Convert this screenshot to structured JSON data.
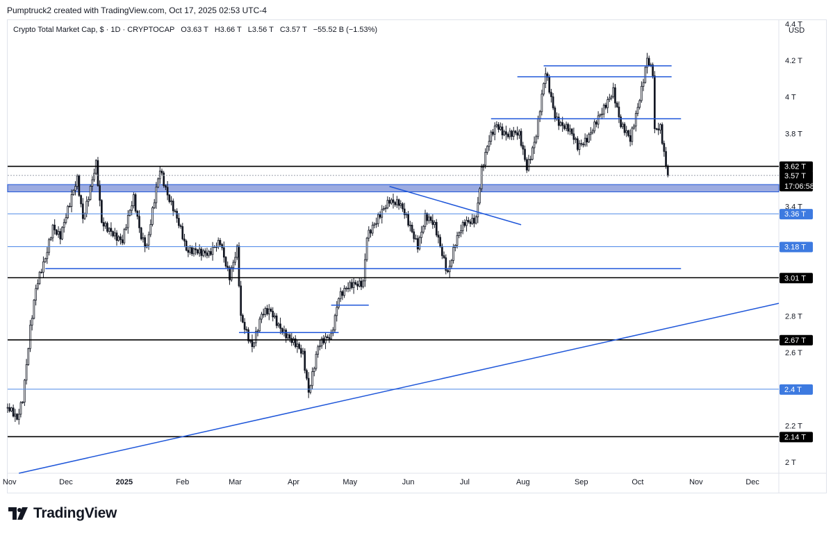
{
  "header": {
    "text": "Pumptruck2 created with TradingView.com, Oct 17, 2025 02:53 UTC-4"
  },
  "legend": {
    "symbol": "Crypto Total Market Cap, $ · 1D · CRYPTOCAP",
    "o_label": "O",
    "o_value": "3.63 T",
    "h_label": "H",
    "h_value": "3.66 T",
    "l_label": "L",
    "l_value": "3.56 T",
    "c_label": "C",
    "c_value": "3.57 T",
    "change": "−55.52 B (−1.53%)"
  },
  "currency": "USD",
  "countdown": "17:06:58",
  "brand": "TradingView",
  "colors": {
    "candle_up": "#ffffff",
    "candle_down": "#131722",
    "support_black": "#000000",
    "line_blue": "#1e56d9",
    "zone_fill": "#7b8fd6",
    "tag_blue": "#3d7ae0"
  },
  "chart_data": {
    "type": "candlestick",
    "title": "",
    "xlabel": "",
    "ylabel": "",
    "y_unit": "T USD",
    "ylim": [
      1.94,
      4.42
    ],
    "xlim": [
      "2024-10-31",
      "2025-12-15"
    ],
    "x_ticks": [
      {
        "date": "2024-11-01",
        "label": "Nov"
      },
      {
        "date": "2024-12-01",
        "label": "Dec"
      },
      {
        "date": "2025-01-01",
        "label": "2025"
      },
      {
        "date": "2025-02-01",
        "label": "Feb"
      },
      {
        "date": "2025-03-01",
        "label": "Mar"
      },
      {
        "date": "2025-04-01",
        "label": "Apr"
      },
      {
        "date": "2025-05-01",
        "label": "May"
      },
      {
        "date": "2025-06-01",
        "label": "Jun"
      },
      {
        "date": "2025-07-01",
        "label": "Jul"
      },
      {
        "date": "2025-08-01",
        "label": "Aug"
      },
      {
        "date": "2025-09-01",
        "label": "Sep"
      },
      {
        "date": "2025-10-01",
        "label": "Oct"
      },
      {
        "date": "2025-11-01",
        "label": "Nov"
      },
      {
        "date": "2025-12-01",
        "label": "Dec"
      }
    ],
    "y_ticks": [
      {
        "value": 2.0,
        "label": "2 T"
      },
      {
        "value": 2.2,
        "label": "2.2 T"
      },
      {
        "value": 2.6,
        "label": "2.6 T"
      },
      {
        "value": 2.8,
        "label": "2.8 T"
      },
      {
        "value": 3.4,
        "label": "3.4 T"
      },
      {
        "value": 3.8,
        "label": "3.8 T"
      },
      {
        "value": 4.0,
        "label": "4 T"
      },
      {
        "value": 4.2,
        "label": "4.2 T"
      },
      {
        "value": 4.4,
        "label": "4.4 T"
      }
    ],
    "price_path": [
      [
        "2024-10-31",
        2.3
      ],
      [
        "2024-11-05",
        2.22
      ],
      [
        "2024-11-08",
        2.35
      ],
      [
        "2024-11-12",
        2.75
      ],
      [
        "2024-11-15",
        2.95
      ],
      [
        "2024-11-20",
        3.1
      ],
      [
        "2024-11-24",
        3.3
      ],
      [
        "2024-11-28",
        3.25
      ],
      [
        "2024-12-03",
        3.4
      ],
      [
        "2024-12-07",
        3.55
      ],
      [
        "2024-12-10",
        3.35
      ],
      [
        "2024-12-17",
        3.62
      ],
      [
        "2024-12-20",
        3.3
      ],
      [
        "2024-12-25",
        3.28
      ],
      [
        "2024-12-31",
        3.2
      ],
      [
        "2025-01-06",
        3.45
      ],
      [
        "2025-01-10",
        3.25
      ],
      [
        "2025-01-13",
        3.18
      ],
      [
        "2025-01-20",
        3.6
      ],
      [
        "2025-01-24",
        3.48
      ],
      [
        "2025-01-27",
        3.4
      ],
      [
        "2025-02-03",
        3.15
      ],
      [
        "2025-02-08",
        3.18
      ],
      [
        "2025-02-15",
        3.12
      ],
      [
        "2025-02-21",
        3.22
      ],
      [
        "2025-02-26",
        3.02
      ],
      [
        "2025-03-02",
        3.15
      ],
      [
        "2025-03-04",
        2.78
      ],
      [
        "2025-03-10",
        2.65
      ],
      [
        "2025-03-15",
        2.8
      ],
      [
        "2025-03-20",
        2.82
      ],
      [
        "2025-03-25",
        2.75
      ],
      [
        "2025-03-31",
        2.65
      ],
      [
        "2025-04-06",
        2.6
      ],
      [
        "2025-04-09",
        2.4
      ],
      [
        "2025-04-14",
        2.62
      ],
      [
        "2025-04-21",
        2.7
      ],
      [
        "2025-04-25",
        2.92
      ],
      [
        "2025-05-01",
        2.95
      ],
      [
        "2025-05-08",
        3.0
      ],
      [
        "2025-05-10",
        3.25
      ],
      [
        "2025-05-15",
        3.3
      ],
      [
        "2025-05-22",
        3.45
      ],
      [
        "2025-05-27",
        3.42
      ],
      [
        "2025-06-01",
        3.3
      ],
      [
        "2025-06-06",
        3.2
      ],
      [
        "2025-06-10",
        3.35
      ],
      [
        "2025-06-15",
        3.28
      ],
      [
        "2025-06-22",
        3.05
      ],
      [
        "2025-06-26",
        3.2
      ],
      [
        "2025-07-01",
        3.3
      ],
      [
        "2025-07-07",
        3.35
      ],
      [
        "2025-07-10",
        3.6
      ],
      [
        "2025-07-14",
        3.75
      ],
      [
        "2025-07-18",
        3.85
      ],
      [
        "2025-07-24",
        3.8
      ],
      [
        "2025-07-30",
        3.78
      ],
      [
        "2025-08-03",
        3.62
      ],
      [
        "2025-08-08",
        3.8
      ],
      [
        "2025-08-13",
        4.12
      ],
      [
        "2025-08-18",
        3.9
      ],
      [
        "2025-08-25",
        3.82
      ],
      [
        "2025-08-30",
        3.72
      ],
      [
        "2025-09-05",
        3.8
      ],
      [
        "2025-09-12",
        3.9
      ],
      [
        "2025-09-18",
        4.05
      ],
      [
        "2025-09-22",
        3.85
      ],
      [
        "2025-09-27",
        3.75
      ],
      [
        "2025-10-01",
        3.95
      ],
      [
        "2025-10-06",
        4.22
      ],
      [
        "2025-10-09",
        4.12
      ],
      [
        "2025-10-10",
        3.8
      ],
      [
        "2025-10-13",
        3.82
      ],
      [
        "2025-10-16",
        3.63
      ],
      [
        "2025-10-17",
        3.57
      ]
    ],
    "horizontal_levels": [
      {
        "value": 3.62,
        "label": "3.62 T",
        "style": "black"
      },
      {
        "value": 3.57,
        "label": "3.57 T",
        "style": "last"
      },
      {
        "value": 3.36,
        "label": "3.36 T",
        "style": "blue"
      },
      {
        "value": 3.18,
        "label": "3.18 T",
        "style": "blue"
      },
      {
        "value": 3.01,
        "label": "3.01 T",
        "style": "black"
      },
      {
        "value": 2.67,
        "label": "2.67 T",
        "style": "black"
      },
      {
        "value": 2.4,
        "label": "2.4 T",
        "style": "blue"
      },
      {
        "value": 2.14,
        "label": "2.14 T",
        "style": "black"
      }
    ],
    "zone": {
      "from": 3.48,
      "to": 3.52
    },
    "drawings": [
      {
        "kind": "segment",
        "from": [
          "2024-11-20",
          3.06
        ],
        "to": [
          "2025-10-24",
          3.06
        ]
      },
      {
        "kind": "segment",
        "from": [
          "2025-04-21",
          2.86
        ],
        "to": [
          "2025-05-11",
          2.86
        ]
      },
      {
        "kind": "segment",
        "from": [
          "2025-03-03",
          2.71
        ],
        "to": [
          "2025-04-25",
          2.71
        ]
      },
      {
        "kind": "segment",
        "from": [
          "2025-05-22",
          3.51
        ],
        "to": [
          "2025-07-31",
          3.3
        ]
      },
      {
        "kind": "segment",
        "from": [
          "2025-07-15",
          3.88
        ],
        "to": [
          "2025-10-24",
          3.88
        ]
      },
      {
        "kind": "segment",
        "from": [
          "2025-07-29",
          4.11
        ],
        "to": [
          "2025-10-19",
          4.11
        ]
      },
      {
        "kind": "segment",
        "from": [
          "2025-08-12",
          4.17
        ],
        "to": [
          "2025-10-19",
          4.17
        ]
      },
      {
        "kind": "segment",
        "from": [
          "2024-11-06",
          1.94
        ],
        "to": [
          "2025-12-15",
          2.87
        ]
      }
    ]
  }
}
